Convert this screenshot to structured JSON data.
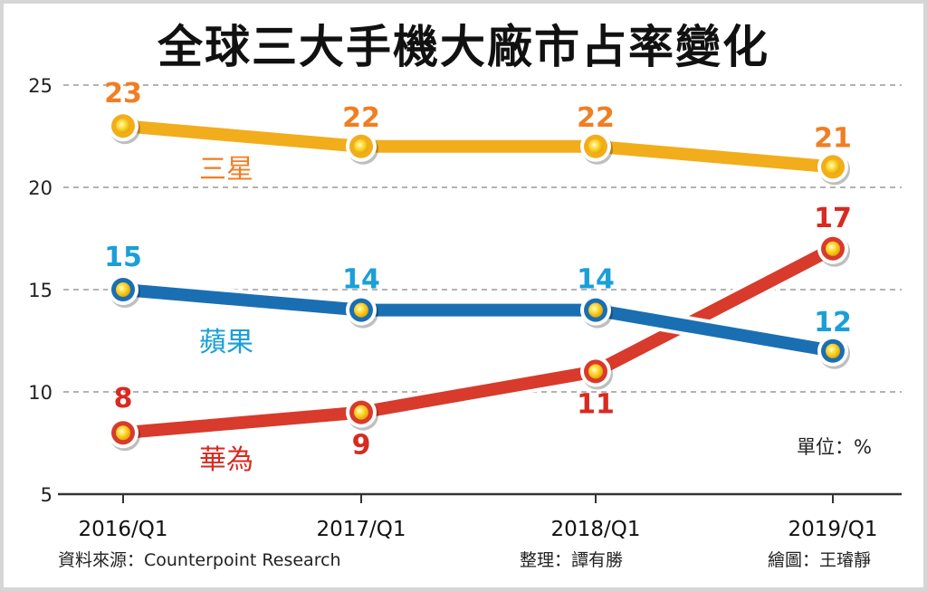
{
  "title": "全球三大手機大廠市占率變化",
  "unit_label": "單位：%",
  "source_label": "資料來源：Counterpoint Research",
  "editor_label": "整理：譚有勝",
  "illustrator_label": "繪圖：王璿靜",
  "colors": {
    "samsung": "#f2ad1c",
    "apple": "#1a6fb3",
    "huawei": "#d83a2c",
    "samsung_text": "#f07e23",
    "apple_text": "#1a9fd8",
    "huawei_text": "#d82a20"
  },
  "chart_data": {
    "type": "line",
    "title": "全球三大手機大廠市占率變化",
    "x": [
      "2016/Q1",
      "2017/Q1",
      "2018/Q1",
      "2019/Q1"
    ],
    "ylim": [
      5,
      25
    ],
    "yticks": [
      "5",
      "10",
      "15",
      "20",
      "25"
    ],
    "grid": true,
    "series": [
      {
        "name": "三星",
        "values": [
          23,
          22,
          22,
          21
        ],
        "labels": [
          "23",
          "22",
          "22",
          "21"
        ]
      },
      {
        "name": "蘋果",
        "values": [
          15,
          14,
          14,
          12
        ],
        "labels": [
          "15",
          "14",
          "14",
          "12"
        ]
      },
      {
        "name": "華為",
        "values": [
          8,
          9,
          11,
          17
        ],
        "labels": [
          "8",
          "9",
          "11",
          "17"
        ]
      }
    ]
  }
}
